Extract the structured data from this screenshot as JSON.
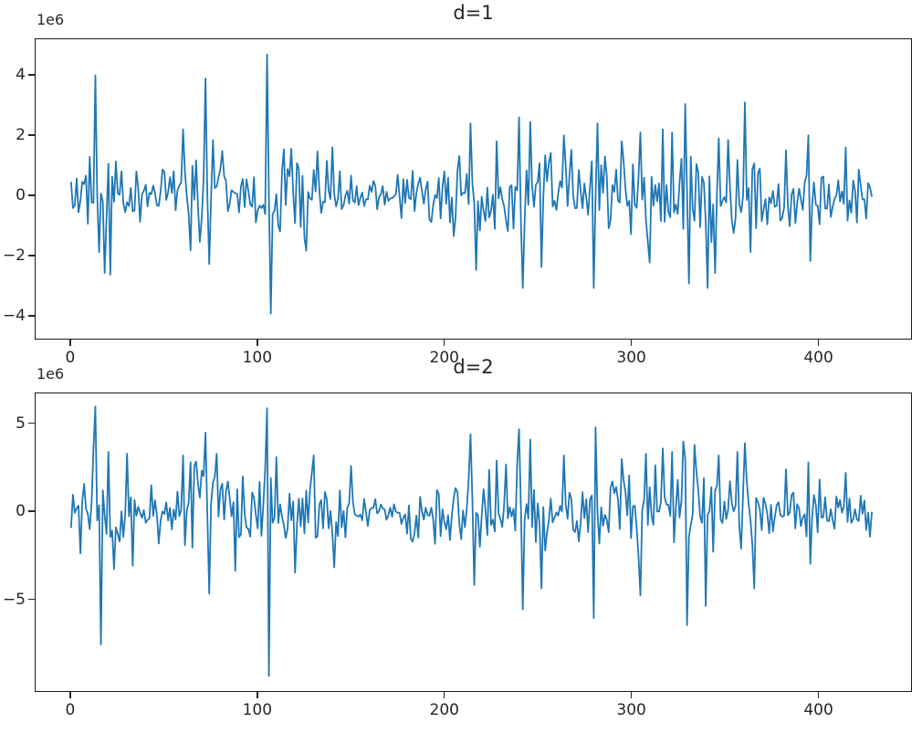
{
  "figure": {
    "background_color": "#ffffff",
    "axis_color": "#262626",
    "spine_color": "#1a1a1a",
    "line_color": "#1f77b4"
  },
  "chart_data": [
    {
      "type": "line",
      "title": "d=1",
      "offset_text": "1e6",
      "unit_multiplier": 1000000,
      "xlabel": "",
      "ylabel": "",
      "grid": false,
      "legend": null,
      "n_points": 430,
      "x_range": [
        0,
        429
      ],
      "xlim": [
        -19,
        450
      ],
      "ylim": [
        -4.79,
        5.21
      ],
      "x_ticks": [
        0,
        100,
        200,
        300,
        400
      ],
      "y_ticks": [
        {
          "label": "4",
          "value": 4
        },
        {
          "label": "2",
          "value": 2
        },
        {
          "label": "0",
          "value": 0
        },
        {
          "label": "−2",
          "value": -2
        },
        {
          "label": "−4",
          "value": -4
        }
      ],
      "seed": 20240,
      "noise_envelope_1e6": [
        [
          0,
          0.45
        ],
        [
          8,
          0.55
        ],
        [
          12,
          1.0
        ],
        [
          22,
          0.95
        ],
        [
          30,
          0.45
        ],
        [
          44,
          0.5
        ],
        [
          56,
          0.55
        ],
        [
          64,
          0.8
        ],
        [
          76,
          0.8
        ],
        [
          86,
          0.5
        ],
        [
          98,
          0.65
        ],
        [
          110,
          0.7
        ],
        [
          122,
          0.6
        ],
        [
          136,
          0.65
        ],
        [
          148,
          0.5
        ],
        [
          158,
          0.28
        ],
        [
          168,
          0.18
        ],
        [
          178,
          0.45
        ],
        [
          194,
          0.55
        ],
        [
          208,
          0.7
        ],
        [
          222,
          0.65
        ],
        [
          238,
          0.8
        ],
        [
          252,
          0.7
        ],
        [
          268,
          0.7
        ],
        [
          284,
          0.75
        ],
        [
          300,
          0.7
        ],
        [
          316,
          0.75
        ],
        [
          330,
          0.85
        ],
        [
          344,
          0.8
        ],
        [
          358,
          0.75
        ],
        [
          372,
          0.5
        ],
        [
          388,
          0.55
        ],
        [
          404,
          0.5
        ],
        [
          418,
          0.45
        ],
        [
          429,
          0.4
        ]
      ],
      "spikes_1e6": [
        [
          13,
          4.0
        ],
        [
          15,
          -1.9
        ],
        [
          18,
          -2.6
        ],
        [
          21,
          -2.65
        ],
        [
          60,
          2.2
        ],
        [
          72,
          3.9
        ],
        [
          74,
          -2.3
        ],
        [
          105,
          4.7
        ],
        [
          107,
          -3.95
        ],
        [
          118,
          1.55
        ],
        [
          126,
          -1.85
        ],
        [
          140,
          1.6
        ],
        [
          214,
          2.4
        ],
        [
          217,
          -2.5
        ],
        [
          228,
          1.8
        ],
        [
          240,
          2.6
        ],
        [
          242,
          -3.1
        ],
        [
          246,
          2.45
        ],
        [
          252,
          -2.4
        ],
        [
          264,
          2.0
        ],
        [
          280,
          -3.1
        ],
        [
          282,
          2.4
        ],
        [
          295,
          1.8
        ],
        [
          305,
          2.1
        ],
        [
          310,
          -2.25
        ],
        [
          317,
          2.2
        ],
        [
          322,
          2.1
        ],
        [
          329,
          3.05
        ],
        [
          331,
          -2.95
        ],
        [
          341,
          -3.1
        ],
        [
          345,
          -2.6
        ],
        [
          347,
          1.9
        ],
        [
          352,
          1.85
        ],
        [
          361,
          3.1
        ],
        [
          364,
          -1.9
        ],
        [
          383,
          1.5
        ],
        [
          395,
          2.0
        ],
        [
          396,
          -2.2
        ],
        [
          415,
          1.6
        ]
      ]
    },
    {
      "type": "line",
      "title": "d=2",
      "offset_text": "1e6",
      "unit_multiplier": 1000000,
      "xlabel": "",
      "ylabel": "",
      "grid": false,
      "legend": null,
      "n_points": 430,
      "x_range": [
        0,
        429
      ],
      "xlim": [
        -19,
        450
      ],
      "ylim": [
        -10.26,
        6.74
      ],
      "x_ticks": [
        0,
        100,
        200,
        300,
        400
      ],
      "y_ticks": [
        {
          "label": "5",
          "value": 5
        },
        {
          "label": "0",
          "value": 0
        },
        {
          "label": "−5",
          "value": -5
        }
      ],
      "seed": 777,
      "noise_envelope_1e6": [
        [
          0,
          0.7
        ],
        [
          8,
          0.85
        ],
        [
          12,
          1.55
        ],
        [
          22,
          1.47
        ],
        [
          30,
          0.7
        ],
        [
          44,
          0.78
        ],
        [
          56,
          0.85
        ],
        [
          64,
          1.24
        ],
        [
          76,
          1.24
        ],
        [
          86,
          0.78
        ],
        [
          98,
          1.0
        ],
        [
          110,
          1.08
        ],
        [
          122,
          0.93
        ],
        [
          136,
          1.0
        ],
        [
          148,
          0.78
        ],
        [
          158,
          0.43
        ],
        [
          168,
          0.28
        ],
        [
          178,
          0.7
        ],
        [
          194,
          0.85
        ],
        [
          208,
          1.08
        ],
        [
          222,
          1.0
        ],
        [
          238,
          1.24
        ],
        [
          252,
          1.08
        ],
        [
          268,
          1.08
        ],
        [
          284,
          1.16
        ],
        [
          300,
          1.08
        ],
        [
          316,
          1.16
        ],
        [
          330,
          1.32
        ],
        [
          344,
          1.24
        ],
        [
          358,
          1.16
        ],
        [
          372,
          0.78
        ],
        [
          388,
          0.85
        ],
        [
          404,
          0.78
        ],
        [
          418,
          0.7
        ],
        [
          429,
          0.62
        ]
      ],
      "spikes_1e6": [
        [
          5,
          -2.4
        ],
        [
          13,
          6.0
        ],
        [
          16,
          -7.6
        ],
        [
          20,
          3.4
        ],
        [
          23,
          -3.3
        ],
        [
          30,
          3.3
        ],
        [
          33,
          -3.1
        ],
        [
          60,
          3.2
        ],
        [
          72,
          4.5
        ],
        [
          74,
          -4.7
        ],
        [
          78,
          3.3
        ],
        [
          88,
          -3.4
        ],
        [
          105,
          5.9
        ],
        [
          106,
          -9.4
        ],
        [
          110,
          3.1
        ],
        [
          120,
          -3.5
        ],
        [
          130,
          3.2
        ],
        [
          141,
          -3.2
        ],
        [
          150,
          2.6
        ],
        [
          214,
          4.4
        ],
        [
          216,
          -4.2
        ],
        [
          228,
          2.9
        ],
        [
          240,
          4.7
        ],
        [
          242,
          -5.6
        ],
        [
          246,
          4.1
        ],
        [
          252,
          -4.4
        ],
        [
          264,
          3.2
        ],
        [
          280,
          -6.1
        ],
        [
          281,
          4.8
        ],
        [
          295,
          3.0
        ],
        [
          305,
          -4.8
        ],
        [
          308,
          3.3
        ],
        [
          317,
          3.6
        ],
        [
          322,
          3.4
        ],
        [
          328,
          4.0
        ],
        [
          330,
          -6.5
        ],
        [
          334,
          3.8
        ],
        [
          340,
          -5.4
        ],
        [
          347,
          3.2
        ],
        [
          357,
          3.4
        ],
        [
          361,
          3.9
        ],
        [
          366,
          -4.4
        ],
        [
          383,
          2.4
        ],
        [
          395,
          2.8
        ],
        [
          396,
          -3.0
        ],
        [
          415,
          2.2
        ]
      ]
    }
  ]
}
